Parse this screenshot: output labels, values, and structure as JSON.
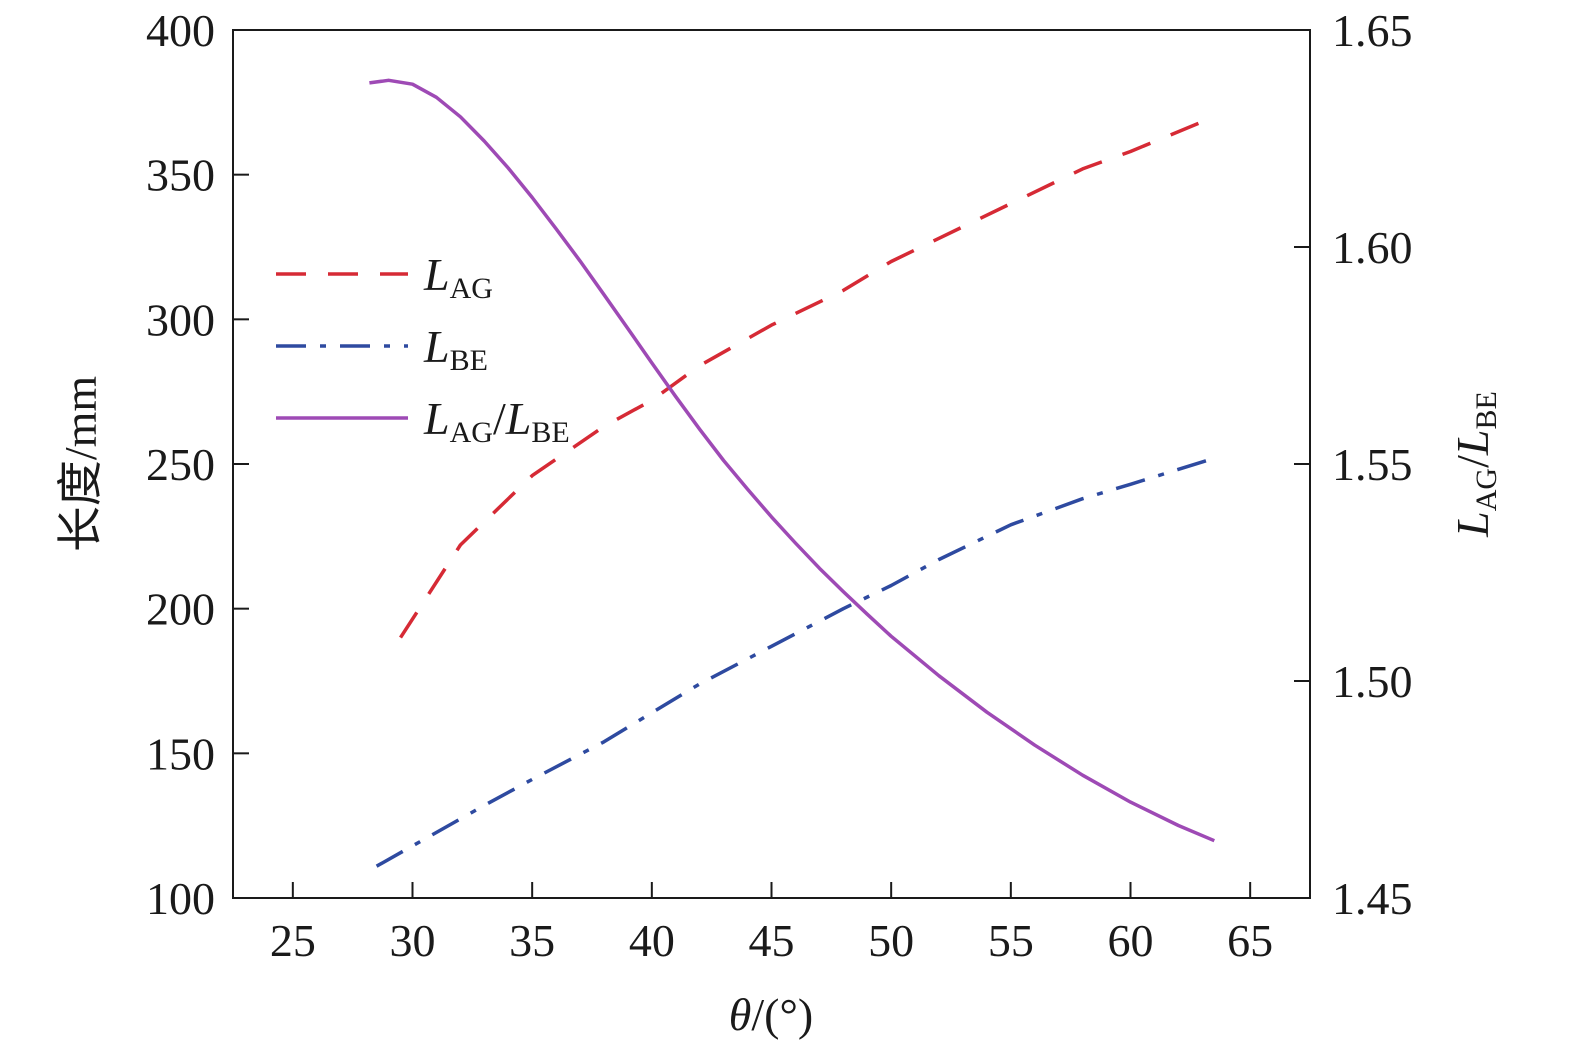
{
  "chart_data": {
    "type": "line",
    "xlabel": {
      "symbol": "θ",
      "unit": "/(°)"
    },
    "ylabel_left": "长度/mm",
    "ylabel_right": {
      "num_main": "L",
      "num_sub": "AG",
      "slash": "/",
      "den_main": "L",
      "den_sub": "BE"
    },
    "xlim": [
      22.5,
      67.5
    ],
    "ylim_left": [
      100,
      400
    ],
    "ylim_right": [
      1.45,
      1.65
    ],
    "x_ticks": [
      25,
      30,
      35,
      40,
      45,
      50,
      55,
      60,
      65
    ],
    "x_tick_labels": [
      "25",
      "30",
      "35",
      "40",
      "45",
      "50",
      "55",
      "60",
      "65"
    ],
    "y_left_ticks": [
      100,
      150,
      200,
      250,
      300,
      350,
      400
    ],
    "y_left_tick_labels": [
      "100",
      "150",
      "200",
      "250",
      "300",
      "350",
      "400"
    ],
    "y_right_ticks": [
      1.45,
      1.5,
      1.55,
      1.6,
      1.65
    ],
    "y_right_tick_labels": [
      "1.45",
      "1.50",
      "1.55",
      "1.60",
      "1.65"
    ],
    "legend_position": "upper-left",
    "series": [
      {
        "name": {
          "main": "L",
          "sub": "AG"
        },
        "axis": "left",
        "color": "#d62a35",
        "style": "dashed",
        "x": [
          29.5,
          32,
          35,
          38,
          40,
          42,
          45,
          48,
          50,
          52,
          55,
          58,
          60,
          63.5
        ],
        "y": [
          190,
          222,
          246,
          263,
          272,
          284,
          298,
          310,
          320,
          328,
          340,
          352,
          358,
          370
        ]
      },
      {
        "name": {
          "main": "L",
          "sub": "BE"
        },
        "axis": "left",
        "color": "#2e4aa0",
        "style": "dashdot",
        "x": [
          28.5,
          30,
          33,
          35,
          38,
          40,
          42,
          45,
          48,
          50,
          52,
          55,
          58,
          60,
          63.5
        ],
        "y": [
          111,
          118,
          132,
          141,
          154,
          164,
          174,
          187,
          200,
          208,
          217,
          229,
          238,
          243,
          252
        ]
      },
      {
        "name": {
          "num_main": "L",
          "num_sub": "AG",
          "slash": "/",
          "den_main": "L",
          "den_sub": "BE"
        },
        "axis": "right",
        "color": "#9e4ab5",
        "style": "solid",
        "x": [
          28.2,
          29,
          30,
          31,
          32,
          33,
          34,
          35,
          36,
          37,
          38,
          39,
          40,
          41,
          42,
          43,
          44,
          45,
          46,
          47,
          48,
          49,
          50,
          52,
          54,
          56,
          58,
          60,
          62,
          63.5
        ],
        "y": [
          1.6378,
          1.6384,
          1.6375,
          1.6345,
          1.63,
          1.6244,
          1.6182,
          1.6114,
          1.6042,
          1.5968,
          1.589,
          1.5812,
          1.5733,
          1.5655,
          1.558,
          1.5508,
          1.5442,
          1.5378,
          1.5318,
          1.526,
          1.5206,
          1.5154,
          1.5103,
          1.5012,
          1.4928,
          1.4852,
          1.4783,
          1.4721,
          1.4667,
          1.4632
        ]
      }
    ]
  }
}
